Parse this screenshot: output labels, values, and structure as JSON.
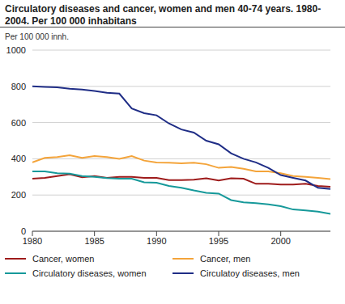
{
  "chart_data": {
    "type": "line",
    "title": "Circulatory diseases and cancer, women and men 40-74 years. 1980-2004. Per 100 000 inhabitans",
    "y_label": "Per 100 000 innh.",
    "x": [
      1980,
      1981,
      1982,
      1983,
      1984,
      1985,
      1986,
      1987,
      1988,
      1989,
      1990,
      1991,
      1992,
      1993,
      1994,
      1995,
      1996,
      1997,
      1998,
      1999,
      2000,
      2001,
      2002,
      2003,
      2004
    ],
    "xlim": [
      1980,
      2004
    ],
    "xticks": [
      1980,
      1985,
      1990,
      1995,
      2000
    ],
    "ylim": [
      0,
      1000
    ],
    "yticks": [
      0,
      200,
      400,
      600,
      800,
      1000
    ],
    "grid": true,
    "legend": "bottom",
    "series": [
      {
        "name": "Cancer, women",
        "color": "#9e1b1b",
        "values": [
          290,
          295,
          305,
          315,
          298,
          305,
          295,
          300,
          300,
          295,
          295,
          282,
          282,
          285,
          292,
          280,
          292,
          290,
          262,
          262,
          258,
          258,
          262,
          250,
          245
        ]
      },
      {
        "name": "Cancer, men",
        "color": "#f4a43a",
        "values": [
          380,
          405,
          410,
          420,
          405,
          415,
          410,
          400,
          415,
          390,
          380,
          378,
          375,
          378,
          370,
          350,
          355,
          345,
          330,
          330,
          320,
          305,
          300,
          295,
          288
        ]
      },
      {
        "name": "Circulatory diseases, women",
        "color": "#16999a",
        "values": [
          330,
          330,
          320,
          318,
          305,
          300,
          293,
          290,
          290,
          270,
          268,
          250,
          240,
          225,
          212,
          208,
          172,
          160,
          155,
          148,
          138,
          120,
          115,
          108,
          96
        ]
      },
      {
        "name": "Circulatoy diseases, men",
        "color": "#1f2d86",
        "values": [
          800,
          797,
          795,
          787,
          782,
          775,
          765,
          760,
          678,
          652,
          640,
          595,
          562,
          545,
          500,
          480,
          430,
          400,
          380,
          350,
          310,
          295,
          280,
          240,
          233
        ]
      }
    ]
  }
}
